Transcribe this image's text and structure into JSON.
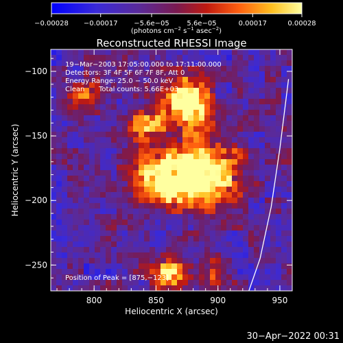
{
  "chart_data": {
    "type": "heatmap",
    "title": "Reconstructed RHESSI Image",
    "xlabel": "Heliocentric X (arcsec)",
    "ylabel": "Heliocentric Y (arcsec)",
    "xlim": [
      765,
      960
    ],
    "ylim": [
      -270,
      -83
    ],
    "x_ticks": [
      800,
      850,
      900,
      950
    ],
    "x_tick_labels": [
      "800",
      "850",
      "900",
      "950"
    ],
    "y_ticks": [
      -100,
      -150,
      -200,
      -250
    ],
    "y_tick_labels": [
      "−100",
      "−150",
      "−200",
      "−250"
    ],
    "colorbar": {
      "range": [
        -0.00028,
        0.00028
      ],
      "tick_values": [
        -0.00028,
        -0.00017,
        -5.6e-05,
        5.6e-05,
        0.00017,
        0.00028
      ],
      "tick_labels": [
        "−0.00028",
        "−0.00017",
        "−5.6e−05",
        "5.6e−05",
        "0.00017",
        "0.00028"
      ],
      "unit_prefix": "(photons cm",
      "unit_sup1": "−2",
      "unit_mid": " s",
      "unit_sup2": "−1",
      "unit_mid2": " asec",
      "unit_sup3": "−2",
      "unit_suffix": ")"
    },
    "annotations": {
      "time_range": "19−Mar−2003 17:05:00.000 to 17:11:00.000",
      "detectors": "Detectors: 3F 4F 5F 6F 7F 8F, Att 0",
      "energy_range": "Energy Range: 25.0 − 50.0 keV",
      "algorithm": "Clean",
      "total_counts": "Total counts: 5.66E+03",
      "peak_label": "Position of Peak = ",
      "peak_value": "[875,−123]"
    },
    "peak": [
      875,
      -123
    ],
    "limb_curve": [
      [
        957,
        -106
      ],
      [
        950,
        -160
      ],
      [
        943,
        -205
      ],
      [
        934,
        -245
      ],
      [
        925,
        -270
      ]
    ],
    "hot_sources": [
      {
        "x": 875,
        "y": -125,
        "sigma": 12,
        "amp": 0.95
      },
      {
        "x": 890,
        "y": -180,
        "sigma": 18,
        "amp": 0.9
      },
      {
        "x": 855,
        "y": -185,
        "sigma": 14,
        "amp": 0.75
      },
      {
        "x": 840,
        "y": -145,
        "sigma": 12,
        "amp": 0.5
      },
      {
        "x": 862,
        "y": -255,
        "sigma": 10,
        "amp": 0.55
      },
      {
        "x": 898,
        "y": -258,
        "sigma": 8,
        "amp": 0.45
      },
      {
        "x": 790,
        "y": -120,
        "sigma": 10,
        "amp": 0.35
      }
    ],
    "colormap": "red-temperature (blue-purple-red-yellow-white)"
  },
  "footer": {
    "date": "30−Apr−2022 00:31"
  },
  "colors": {
    "background": "#000000",
    "axes": "#ffffff",
    "limb": "#ffffff"
  }
}
